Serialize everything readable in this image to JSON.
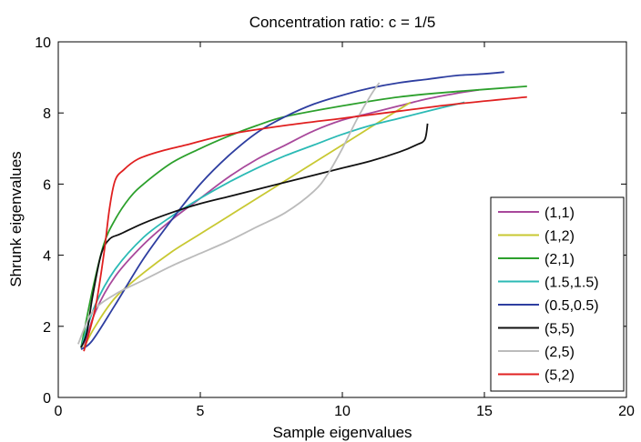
{
  "chart_data": {
    "type": "line",
    "title": "Concentration ratio: c = 1/5",
    "xlabel": "Sample eigenvalues",
    "ylabel": "Shrunk eigenvalues",
    "xlim": [
      0,
      20
    ],
    "ylim": [
      0,
      10
    ],
    "xticks": [
      0,
      5,
      10,
      15,
      20
    ],
    "yticks": [
      0,
      2,
      4,
      6,
      8,
      10
    ],
    "grid": false,
    "legend_position": "bottom-right",
    "series": [
      {
        "name": "(1,1)",
        "color": "#a8489b",
        "x": [
          0.9,
          1.3,
          2,
          3,
          4,
          5,
          6,
          7,
          8,
          9,
          10,
          11,
          12,
          13,
          14,
          14.8
        ],
        "y": [
          1.4,
          2.4,
          3.4,
          4.3,
          5.0,
          5.6,
          6.2,
          6.7,
          7.1,
          7.5,
          7.8,
          8.0,
          8.2,
          8.4,
          8.55,
          8.65
        ]
      },
      {
        "name": "(1,2)",
        "color": "#c8c832",
        "x": [
          0.9,
          1.3,
          2,
          3,
          4,
          5,
          6,
          7,
          8,
          9,
          10,
          11,
          12,
          12.4
        ],
        "y": [
          1.4,
          2.0,
          2.8,
          3.5,
          4.1,
          4.6,
          5.1,
          5.6,
          6.1,
          6.6,
          7.1,
          7.6,
          8.1,
          8.3
        ]
      },
      {
        "name": "(2,1)",
        "color": "#2ca02c",
        "x": [
          0.8,
          1.2,
          1.6,
          2,
          2.5,
          3,
          4,
          5,
          6,
          7,
          8,
          10,
          12,
          14,
          16.5
        ],
        "y": [
          1.4,
          3.0,
          4.3,
          5.0,
          5.6,
          6.0,
          6.6,
          7.0,
          7.35,
          7.65,
          7.9,
          8.2,
          8.45,
          8.6,
          8.75
        ]
      },
      {
        "name": "(1.5,1.5)",
        "color": "#2bbab5",
        "x": [
          0.8,
          1.3,
          2,
          3,
          4,
          5,
          6,
          7,
          8,
          9,
          10,
          11,
          12,
          13,
          14.3
        ],
        "y": [
          1.4,
          2.6,
          3.6,
          4.5,
          5.1,
          5.6,
          6.05,
          6.45,
          6.8,
          7.1,
          7.4,
          7.65,
          7.85,
          8.05,
          8.3
        ]
      },
      {
        "name": "(0.5,0.5)",
        "color": "#2e3ea0",
        "x": [
          0.8,
          1.2,
          2,
          3,
          4,
          5,
          6,
          7,
          8,
          9,
          10,
          11,
          12,
          13,
          14,
          15,
          15.7
        ],
        "y": [
          1.35,
          1.6,
          2.6,
          3.9,
          5.0,
          6.0,
          6.8,
          7.45,
          7.9,
          8.25,
          8.5,
          8.7,
          8.85,
          8.95,
          9.05,
          9.1,
          9.15
        ]
      },
      {
        "name": "(5,5)",
        "color": "#111111",
        "x": [
          0.8,
          1.0,
          1.2,
          1.5,
          1.8,
          2.2,
          3,
          4,
          5,
          6,
          7,
          8,
          9,
          10,
          11,
          12,
          12.6,
          12.9,
          13.0
        ],
        "y": [
          1.4,
          1.8,
          2.8,
          4.0,
          4.45,
          4.6,
          4.9,
          5.2,
          5.45,
          5.65,
          5.85,
          6.05,
          6.25,
          6.45,
          6.65,
          6.9,
          7.1,
          7.25,
          7.7
        ]
      },
      {
        "name": "(2,5)",
        "color": "#bbbbbb",
        "x": [
          0.7,
          1.2,
          2,
          3,
          4,
          5,
          6,
          7,
          8,
          9,
          9.5,
          10,
          10.5,
          11,
          11.3
        ],
        "y": [
          1.5,
          2.4,
          2.9,
          3.3,
          3.7,
          4.05,
          4.4,
          4.8,
          5.2,
          5.8,
          6.3,
          7.0,
          7.8,
          8.5,
          8.85
        ]
      },
      {
        "name": "(5,2)",
        "color": "#e02020",
        "x": [
          0.9,
          1.3,
          1.6,
          1.8,
          2,
          2.3,
          2.8,
          3.5,
          4.5,
          6,
          8,
          10,
          12,
          14,
          16.5
        ],
        "y": [
          1.3,
          2.5,
          4.0,
          5.3,
          6.1,
          6.4,
          6.7,
          6.9,
          7.1,
          7.4,
          7.65,
          7.85,
          8.05,
          8.25,
          8.45
        ]
      }
    ]
  }
}
